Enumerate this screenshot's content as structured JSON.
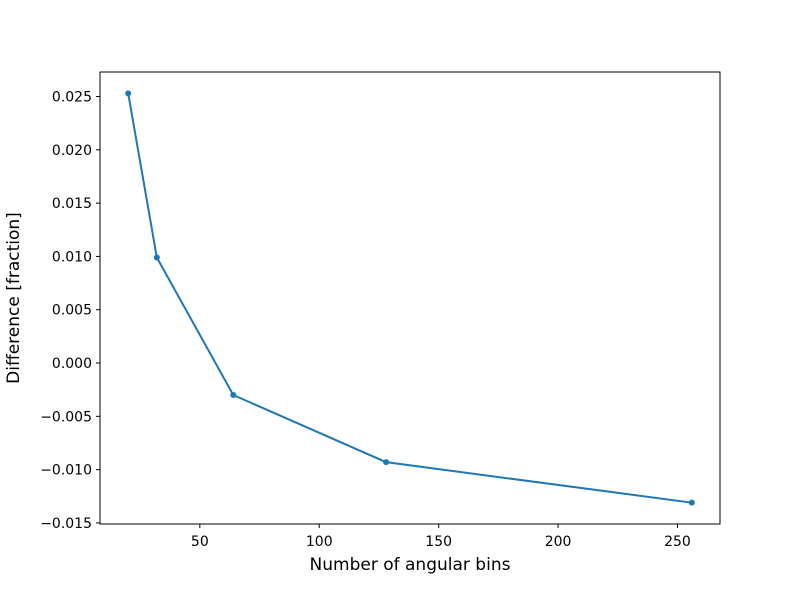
{
  "chart_data": {
    "type": "line",
    "xlabel": "Number of angular bins",
    "ylabel": "Difference [fraction]",
    "x": [
      20,
      32,
      64,
      128,
      256
    ],
    "series": [
      {
        "color": "#1f77b4",
        "values": [
          0.0253,
          0.0099,
          -0.003,
          -0.0093,
          -0.0131
        ]
      }
    ],
    "xlim": [
      8.2,
      267.8
    ],
    "ylim": [
      -0.0151,
      0.0273
    ],
    "xticks": [
      50,
      100,
      150,
      200,
      250
    ],
    "yticks": [
      {
        "value": -0.015,
        "label": "−0.015"
      },
      {
        "value": -0.01,
        "label": "−0.010"
      },
      {
        "value": -0.005,
        "label": "−0.005"
      },
      {
        "value": 0,
        "label": "0.000"
      },
      0.005,
      {
        "value": 0.01,
        "label": "0.010"
      },
      0.015,
      {
        "value": 0.02,
        "label": "0.020"
      },
      0.025
    ],
    "grid": false
  }
}
